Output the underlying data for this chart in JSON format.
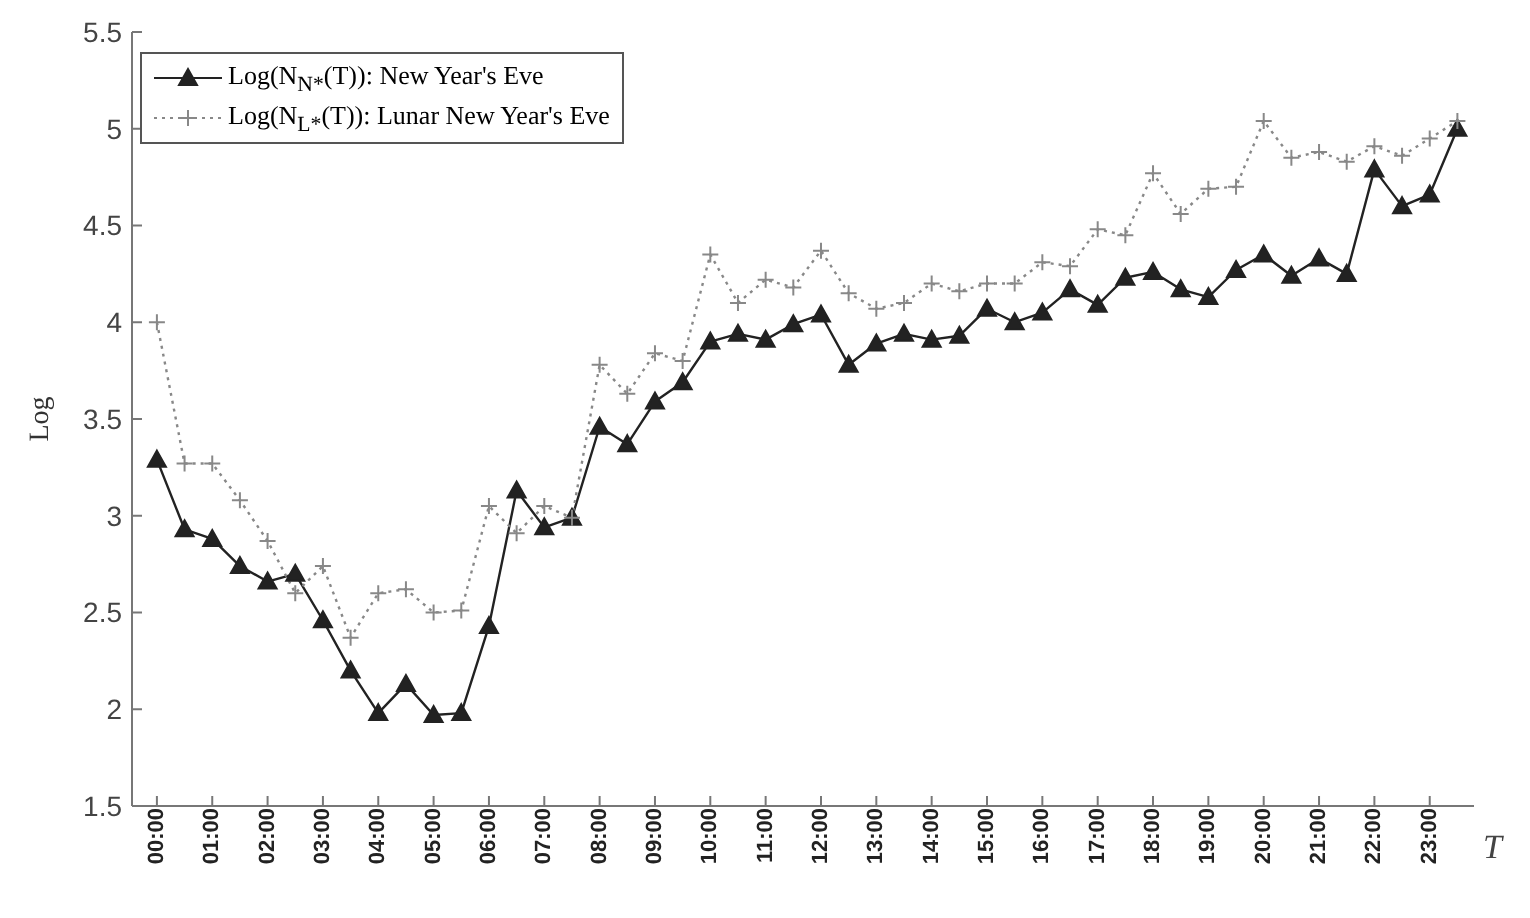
{
  "chart_data": {
    "type": "line",
    "xlabel": "T",
    "ylabel": "Log",
    "x": [
      0,
      0.5,
      1,
      1.5,
      2,
      2.5,
      3,
      3.5,
      4,
      4.5,
      5,
      5.5,
      6,
      6.5,
      7,
      7.5,
      8,
      8.5,
      9,
      9.5,
      10,
      10.5,
      11,
      11.5,
      12,
      12.5,
      13,
      13.5,
      14,
      14.5,
      15,
      15.5,
      16,
      16.5,
      17,
      17.5,
      18,
      18.5,
      19,
      19.5,
      20,
      20.5,
      21,
      21.5,
      22,
      22.5,
      23,
      23.5
    ],
    "series": [
      {
        "name": "Log(N$_{N*}$(T)): New Year's Eve",
        "color": "#222222",
        "marker": "triangle",
        "line_style": "solid",
        "values": [
          3.29,
          2.93,
          2.88,
          2.74,
          2.66,
          2.7,
          2.46,
          2.2,
          1.98,
          2.13,
          1.97,
          1.98,
          2.43,
          3.13,
          2.94,
          2.99,
          3.46,
          3.37,
          3.59,
          3.69,
          3.9,
          3.94,
          3.91,
          3.99,
          4.04,
          3.78,
          3.89,
          3.94,
          3.91,
          3.93,
          4.07,
          4.0,
          4.05,
          4.17,
          4.09,
          4.23,
          4.26,
          4.17,
          4.13,
          4.27,
          4.35,
          4.24,
          4.33,
          4.25,
          4.79,
          4.6,
          4.66,
          5.0
        ]
      },
      {
        "name": "Log(N$_{L*}$(T)): Lunar New Year's Eve",
        "color": "#888888",
        "marker": "cross",
        "line_style": "dotted",
        "values": [
          4.0,
          3.27,
          3.27,
          3.08,
          2.87,
          2.6,
          2.74,
          2.37,
          2.6,
          2.62,
          2.5,
          2.51,
          3.05,
          2.91,
          3.05,
          2.99,
          3.78,
          3.63,
          3.84,
          3.8,
          4.35,
          4.1,
          4.22,
          4.18,
          4.37,
          4.15,
          4.07,
          4.1,
          4.2,
          4.16,
          4.2,
          4.2,
          4.31,
          4.29,
          4.48,
          4.45,
          4.77,
          4.56,
          4.69,
          4.7,
          5.04,
          4.85,
          4.88,
          4.83,
          4.91,
          4.86,
          4.95,
          5.04
        ]
      }
    ],
    "xlim": [
      -0.45,
      23.8
    ],
    "xticks": [
      {
        "value": 0,
        "label": "00:00"
      },
      {
        "value": 1,
        "label": "01:00"
      },
      {
        "value": 2,
        "label": "02:00"
      },
      {
        "value": 3,
        "label": "03:00"
      },
      {
        "value": 4,
        "label": "04:00"
      },
      {
        "value": 5,
        "label": "05:00"
      },
      {
        "value": 6,
        "label": "06:00"
      },
      {
        "value": 7,
        "label": "07:00"
      },
      {
        "value": 8,
        "label": "08:00"
      },
      {
        "value": 9,
        "label": "09:00"
      },
      {
        "value": 10,
        "label": "10:00"
      },
      {
        "value": 11,
        "label": "11:00"
      },
      {
        "value": 12,
        "label": "12:00"
      },
      {
        "value": 13,
        "label": "13:00"
      },
      {
        "value": 14,
        "label": "14:00"
      },
      {
        "value": 15,
        "label": "15:00"
      },
      {
        "value": 16,
        "label": "16:00"
      },
      {
        "value": 17,
        "label": "17:00"
      },
      {
        "value": 18,
        "label": "18:00"
      },
      {
        "value": 19,
        "label": "19:00"
      },
      {
        "value": 20,
        "label": "20:00"
      },
      {
        "value": 21,
        "label": "21:00"
      },
      {
        "value": 22,
        "label": "22:00"
      },
      {
        "value": 23,
        "label": "23:00"
      }
    ],
    "ylim": [
      1.5,
      5.5
    ],
    "yticks": [
      1.5,
      2,
      2.5,
      3,
      3.5,
      4,
      4.5,
      5,
      5.5
    ],
    "grid": false,
    "legend": "top left"
  }
}
